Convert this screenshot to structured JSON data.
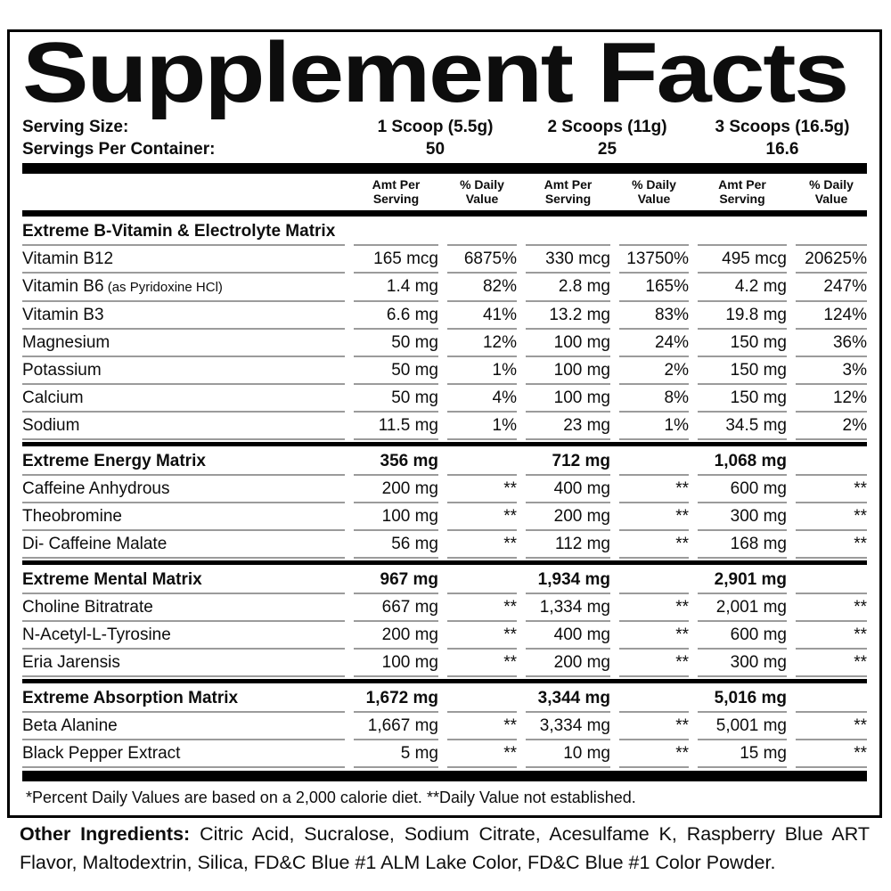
{
  "panel": {
    "title": "Supplement Facts",
    "serving_size_label": "Serving Size:",
    "serving_sizes": [
      "1 Scoop (5.5g)",
      "2 Scoops (11g)",
      "3 Scoops (16.5g)"
    ],
    "servings_per_container_label": "Servings Per Container:",
    "servings_per_container": [
      "50",
      "25",
      "16.6"
    ],
    "column_headers": {
      "amt": "Amt Per\nServing",
      "dv": "% Daily\nValue"
    },
    "sections": [
      {
        "name": "Extreme B-Vitamin & Electrolyte Matrix",
        "amounts": [
          "",
          "",
          ""
        ],
        "rows": [
          {
            "name": "Vitamin B12",
            "values": [
              "165 mcg",
              "6875%",
              "330 mcg",
              "13750%",
              "495 mcg",
              "20625%"
            ]
          },
          {
            "name": "Vitamin B6",
            "note": "(as Pyridoxine HCl)",
            "values": [
              "1.4 mg",
              "82%",
              "2.8 mg",
              "165%",
              "4.2 mg",
              "247%"
            ]
          },
          {
            "name": "Vitamin B3",
            "values": [
              "6.6 mg",
              "41%",
              "13.2 mg",
              "83%",
              "19.8 mg",
              "124%"
            ]
          },
          {
            "name": "Magnesium",
            "values": [
              "50 mg",
              "12%",
              "100 mg",
              "24%",
              "150 mg",
              "36%"
            ]
          },
          {
            "name": "Potassium",
            "values": [
              "50 mg",
              "1%",
              "100 mg",
              "2%",
              "150 mg",
              "3%"
            ]
          },
          {
            "name": "Calcium",
            "values": [
              "50 mg",
              "4%",
              "100 mg",
              "8%",
              "150 mg",
              "12%"
            ]
          },
          {
            "name": "Sodium",
            "values": [
              "11.5 mg",
              "1%",
              "23 mg",
              "1%",
              "34.5 mg",
              "2%"
            ]
          }
        ]
      },
      {
        "name": "Extreme Energy Matrix",
        "amounts": [
          "356 mg",
          "712 mg",
          "1,068 mg"
        ],
        "rows": [
          {
            "name": "Caffeine Anhydrous",
            "values": [
              "200 mg",
              "**",
              "400 mg",
              "**",
              "600 mg",
              "**"
            ]
          },
          {
            "name": "Theobromine",
            "values": [
              "100 mg",
              "**",
              "200 mg",
              "**",
              "300 mg",
              "**"
            ]
          },
          {
            "name": "Di- Caffeine Malate",
            "values": [
              "56 mg",
              "**",
              "112 mg",
              "**",
              "168 mg",
              "**"
            ]
          }
        ]
      },
      {
        "name": "Extreme Mental Matrix",
        "amounts": [
          "967 mg",
          "1,934 mg",
          "2,901 mg"
        ],
        "rows": [
          {
            "name": "Choline Bitratrate",
            "values": [
              "667 mg",
              "**",
              "1,334 mg",
              "**",
              "2,001 mg",
              "**"
            ]
          },
          {
            "name": "N-Acetyl-L-Tyrosine",
            "values": [
              "200 mg",
              "**",
              "400 mg",
              "**",
              "600 mg",
              "**"
            ]
          },
          {
            "name": "Eria Jarensis",
            "values": [
              "100 mg",
              "**",
              "200 mg",
              "**",
              "300 mg",
              "**"
            ]
          }
        ]
      },
      {
        "name": "Extreme Absorption Matrix",
        "amounts": [
          "1,672 mg",
          "3,344 mg",
          "5,016 mg"
        ],
        "rows": [
          {
            "name": "Beta Alanine",
            "values": [
              "1,667 mg",
              "**",
              "3,334 mg",
              "**",
              "5,001 mg",
              "**"
            ]
          },
          {
            "name": "Black Pepper Extract",
            "values": [
              "5 mg",
              "**",
              "10 mg",
              "**",
              "15 mg",
              "**"
            ]
          }
        ]
      }
    ],
    "footnote": "*Percent Daily Values are based on a 2,000 calorie diet. **Daily Value not established.",
    "other_ingredients_label": "Other Ingredients:",
    "other_ingredients": "Citric Acid, Sucralose, Sodium Citrate, Acesulfame K, Raspberry Blue ART Flavor, Maltodextrin, Silica, FD&C Blue #1 ALM Lake Color, FD&C Blue #1 Color Powder.",
    "colors": {
      "text": "#0d0d0d",
      "border": "#000000",
      "hairline": "#9b9b9b",
      "background": "#ffffff"
    }
  }
}
